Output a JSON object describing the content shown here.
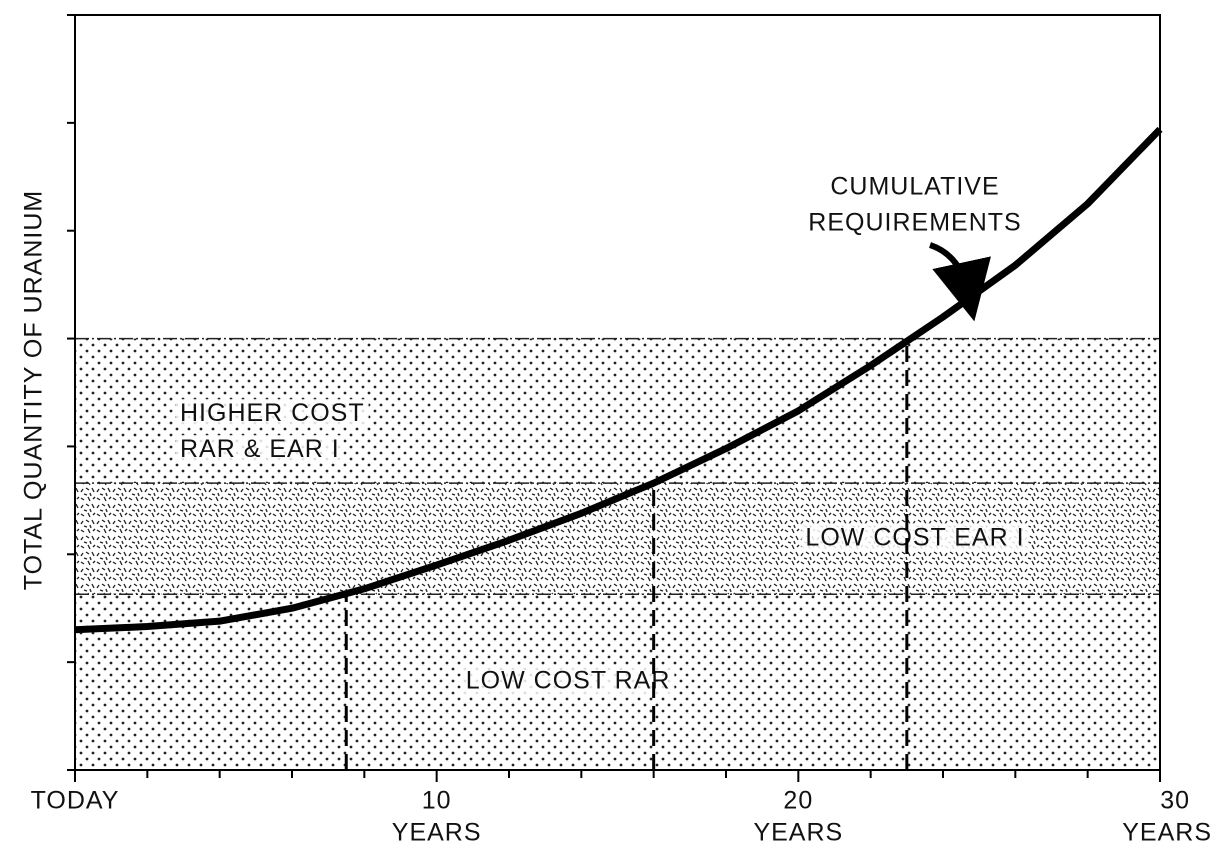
{
  "chart_data": {
    "type": "line",
    "y_label": "TOTAL QUANTITY OF URANIUM",
    "xlim": [
      0,
      30
    ],
    "ylim": [
      0,
      7
    ],
    "xticks": [
      {
        "value": 0,
        "label": [
          "TODAY"
        ]
      },
      {
        "value": 10,
        "label": [
          "10",
          "YEARS"
        ]
      },
      {
        "value": 20,
        "label": [
          "20",
          "YEARS"
        ]
      },
      {
        "value": 30,
        "label": [
          "30",
          "YEARS"
        ]
      }
    ],
    "x_minor_ticks": [
      2,
      4,
      6,
      8,
      12,
      14,
      16,
      18,
      22,
      24,
      26,
      28
    ],
    "yticks": [
      0,
      1,
      2,
      3,
      4,
      5,
      6,
      7
    ],
    "bands": [
      {
        "name": [
          "LOW COST RAR"
        ],
        "value": 1.63,
        "pattern": "dots"
      },
      {
        "name": [
          "LOW COST EAR I"
        ],
        "value": 1.03,
        "pattern": "dashes"
      },
      {
        "name": [
          "HIGHER COST",
          "RAR & EAR I"
        ],
        "value": 1.34,
        "pattern": "dots"
      }
    ],
    "series": [
      {
        "name": [
          "CUMULATIVE",
          "REQUIREMENTS"
        ],
        "color": "#000",
        "x": [
          0,
          2,
          4,
          6,
          8,
          10,
          12,
          14,
          16,
          18,
          20,
          22,
          24,
          26,
          28,
          30
        ],
        "values": [
          1.3,
          1.33,
          1.38,
          1.5,
          1.68,
          1.9,
          2.13,
          2.38,
          2.66,
          2.98,
          3.33,
          3.75,
          4.2,
          4.68,
          5.25,
          5.94
        ]
      }
    ],
    "marker_lines": [
      7.5,
      16,
      23
    ]
  }
}
